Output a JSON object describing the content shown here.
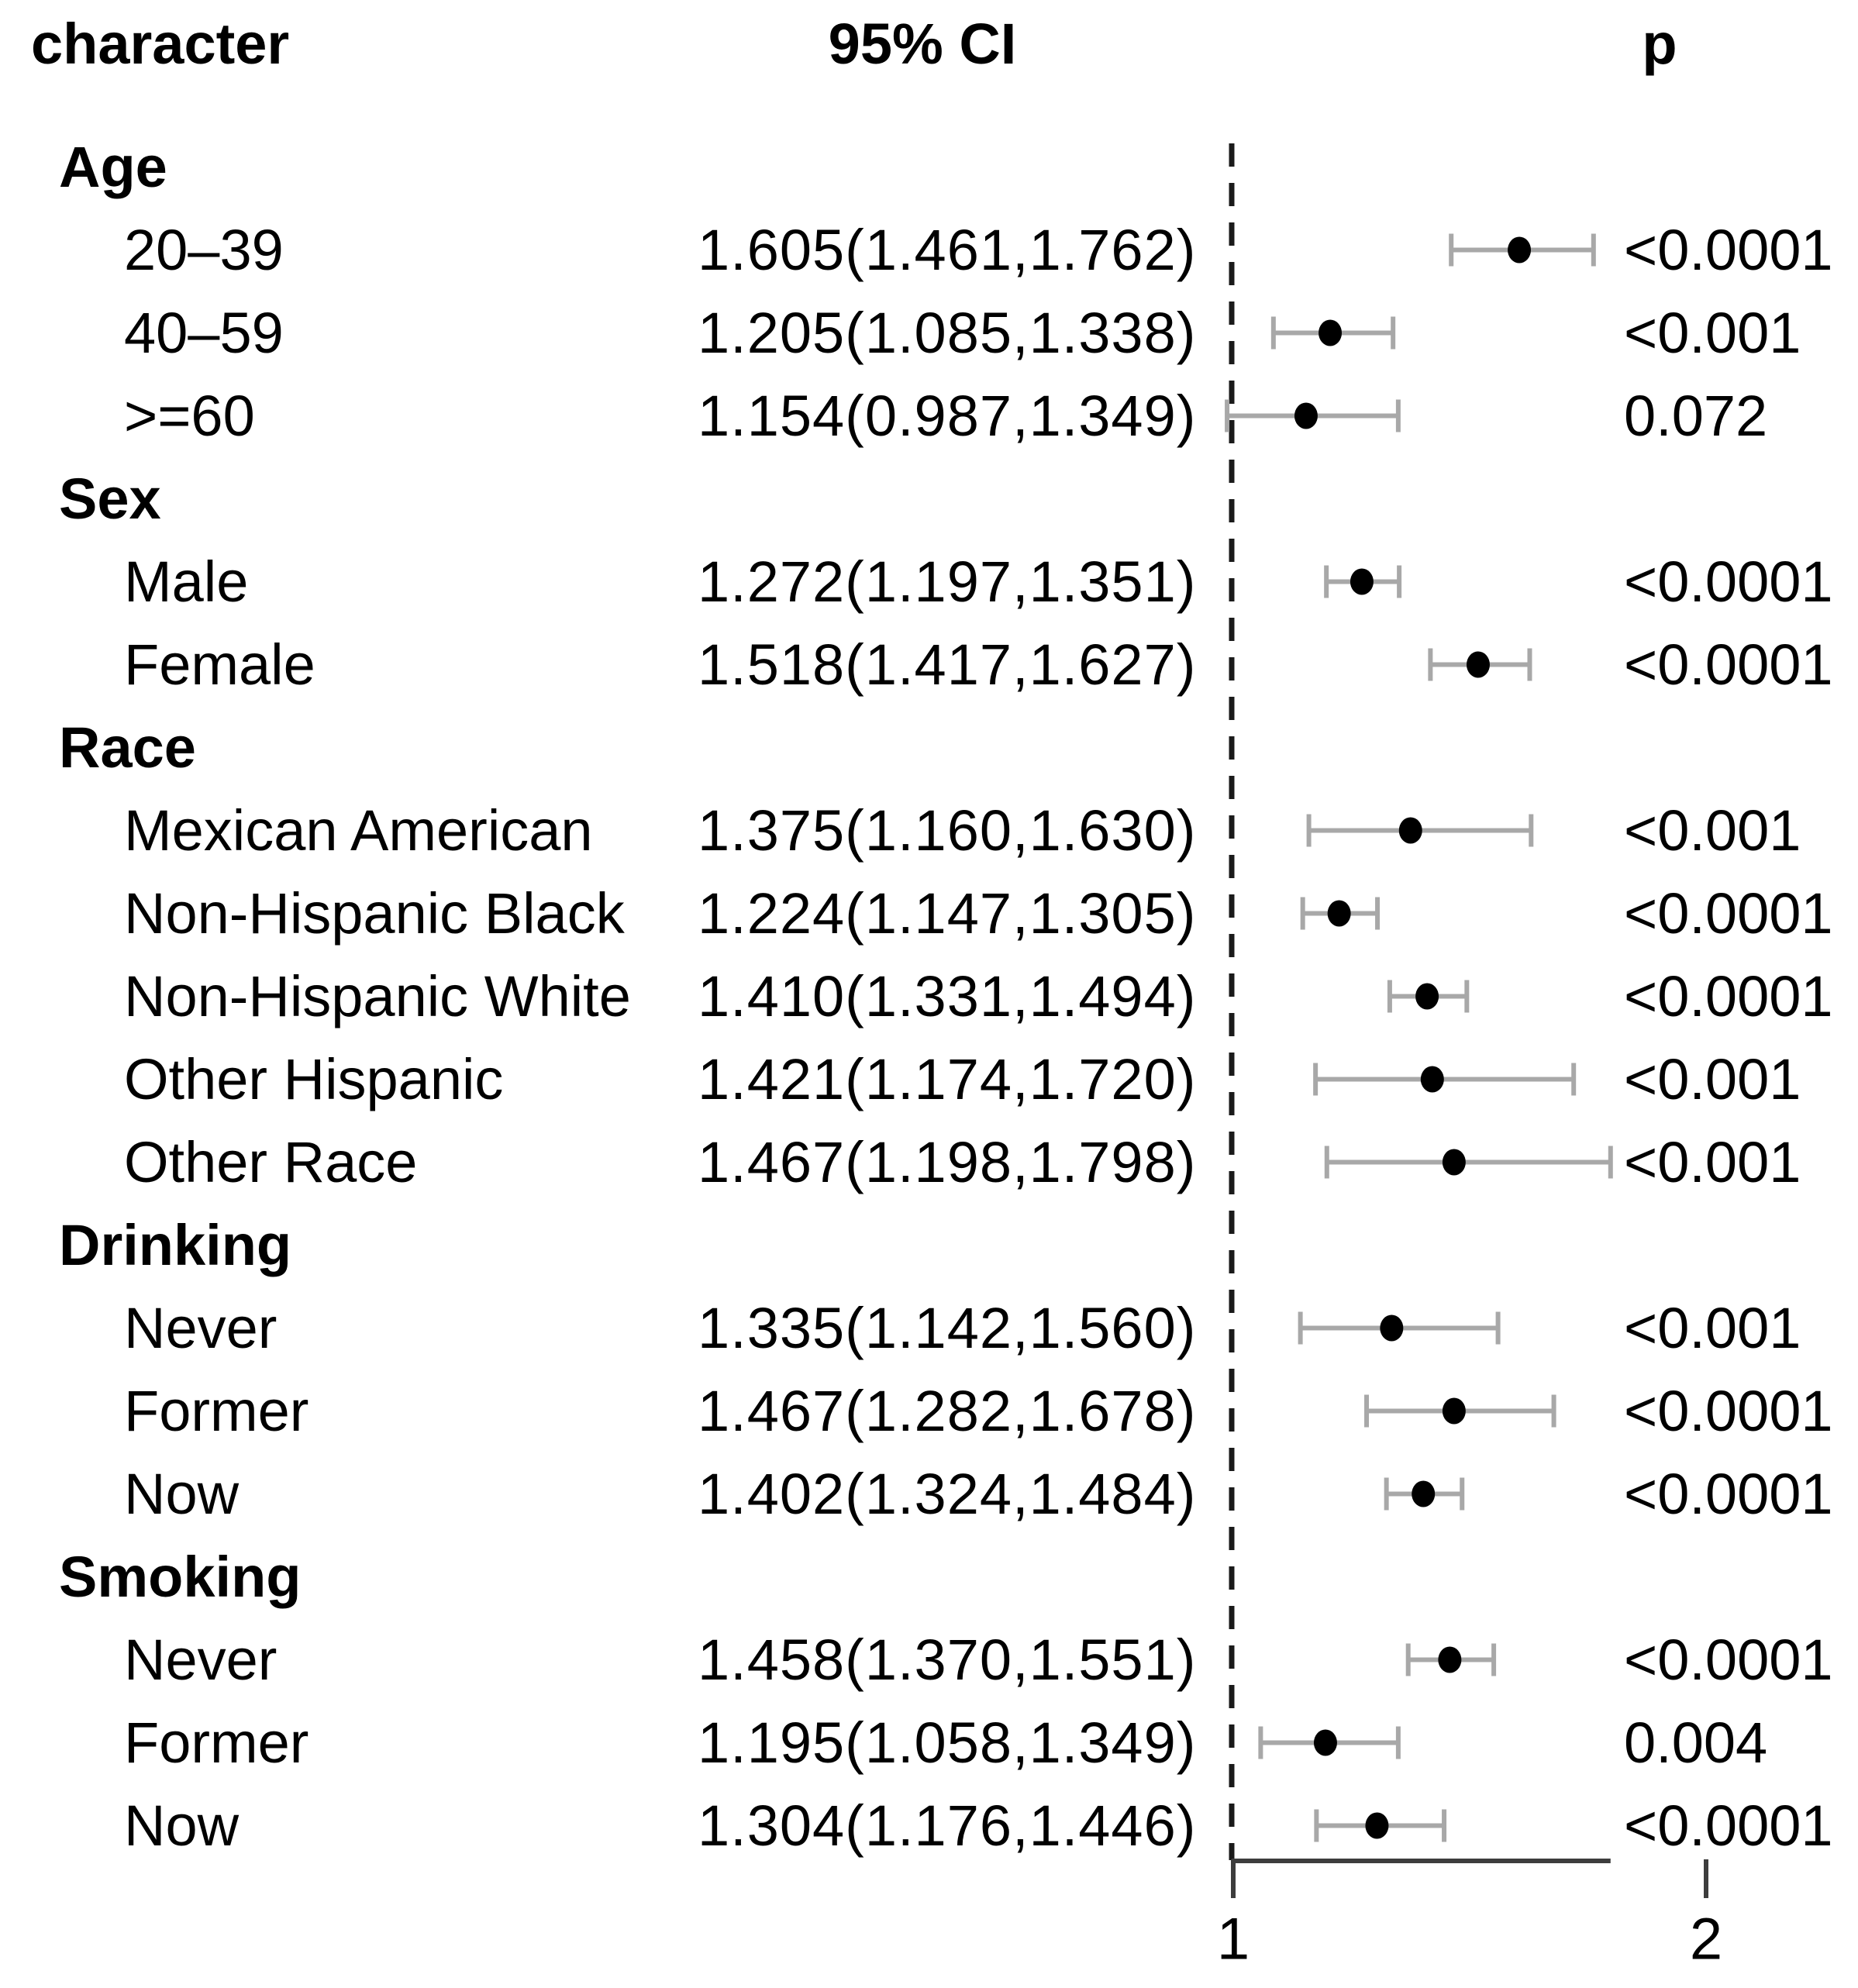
{
  "header": {
    "character": "character",
    "ci": "95% CI",
    "p": "p"
  },
  "colors": {
    "marker": "#000000",
    "whisker": "#a8a8a8",
    "axis": "#3d3d3d",
    "reference_line": "#1a1a1a",
    "text": "#000000"
  },
  "chart_data": {
    "type": "scatter",
    "variant": "forest-plot",
    "xlabel": "",
    "ylabel": "",
    "legend": null,
    "grid": false,
    "x_axis": {
      "reference_line_value": 1,
      "axis_span": [
        1.0,
        1.81
      ],
      "ticks": [
        {
          "label": "1",
          "value": 1
        },
        {
          "label": "2",
          "value": 2
        }
      ]
    },
    "rows": [
      {
        "kind": "group",
        "label": "Age"
      },
      {
        "kind": "item",
        "label": "20–39",
        "ci_text": "1.605(1.461,1.762)",
        "estimate": 1.605,
        "ci_low": 1.461,
        "ci_high": 1.762,
        "p": "<0.0001"
      },
      {
        "kind": "item",
        "label": "40–59",
        "ci_text": "1.205(1.085,1.338)",
        "estimate": 1.205,
        "ci_low": 1.085,
        "ci_high": 1.338,
        "p": "<0.001"
      },
      {
        "kind": "item",
        "label": ">=60",
        "ci_text": "1.154(0.987,1.349)",
        "estimate": 1.154,
        "ci_low": 0.987,
        "ci_high": 1.349,
        "p": "0.072"
      },
      {
        "kind": "group",
        "label": "Sex"
      },
      {
        "kind": "item",
        "label": "Male",
        "ci_text": "1.272(1.197,1.351)",
        "estimate": 1.272,
        "ci_low": 1.197,
        "ci_high": 1.351,
        "p": "<0.0001"
      },
      {
        "kind": "item",
        "label": "Female",
        "ci_text": "1.518(1.417,1.627)",
        "estimate": 1.518,
        "ci_low": 1.417,
        "ci_high": 1.627,
        "p": "<0.0001"
      },
      {
        "kind": "group",
        "label": "Race"
      },
      {
        "kind": "item",
        "label": "Mexican American",
        "ci_text": "1.375(1.160,1.630)",
        "estimate": 1.375,
        "ci_low": 1.16,
        "ci_high": 1.63,
        "p": "<0.001"
      },
      {
        "kind": "item",
        "label": "Non-Hispanic Black",
        "ci_text": "1.224(1.147,1.305)",
        "estimate": 1.224,
        "ci_low": 1.147,
        "ci_high": 1.305,
        "p": "<0.0001"
      },
      {
        "kind": "item",
        "label": "Non-Hispanic White",
        "ci_text": "1.410(1.331,1.494)",
        "estimate": 1.41,
        "ci_low": 1.331,
        "ci_high": 1.494,
        "p": "<0.0001"
      },
      {
        "kind": "item",
        "label": "Other Hispanic",
        "ci_text": "1.421(1.174,1.720)",
        "estimate": 1.421,
        "ci_low": 1.174,
        "ci_high": 1.72,
        "p": "<0.001"
      },
      {
        "kind": "item",
        "label": "Other Race",
        "ci_text": "1.467(1.198,1.798)",
        "estimate": 1.467,
        "ci_low": 1.198,
        "ci_high": 1.798,
        "p": "<0.001"
      },
      {
        "kind": "group",
        "label": "Drinking"
      },
      {
        "kind": "item",
        "label": "Never",
        "ci_text": "1.335(1.142,1.560)",
        "estimate": 1.335,
        "ci_low": 1.142,
        "ci_high": 1.56,
        "p": "<0.001"
      },
      {
        "kind": "item",
        "label": "Former",
        "ci_text": "1.467(1.282,1.678)",
        "estimate": 1.467,
        "ci_low": 1.282,
        "ci_high": 1.678,
        "p": "<0.0001"
      },
      {
        "kind": "item",
        "label": "Now",
        "ci_text": "1.402(1.324,1.484)",
        "estimate": 1.402,
        "ci_low": 1.324,
        "ci_high": 1.484,
        "p": "<0.0001"
      },
      {
        "kind": "group",
        "label": "Smoking"
      },
      {
        "kind": "item",
        "label": "Never",
        "ci_text": "1.458(1.370,1.551)",
        "estimate": 1.458,
        "ci_low": 1.37,
        "ci_high": 1.551,
        "p": "<0.0001"
      },
      {
        "kind": "item",
        "label": "Former",
        "ci_text": "1.195(1.058,1.349)",
        "estimate": 1.195,
        "ci_low": 1.058,
        "ci_high": 1.349,
        "p": "0.004"
      },
      {
        "kind": "item",
        "label": "Now",
        "ci_text": "1.304(1.176,1.446)",
        "estimate": 1.304,
        "ci_low": 1.176,
        "ci_high": 1.446,
        "p": "<0.0001"
      }
    ]
  }
}
